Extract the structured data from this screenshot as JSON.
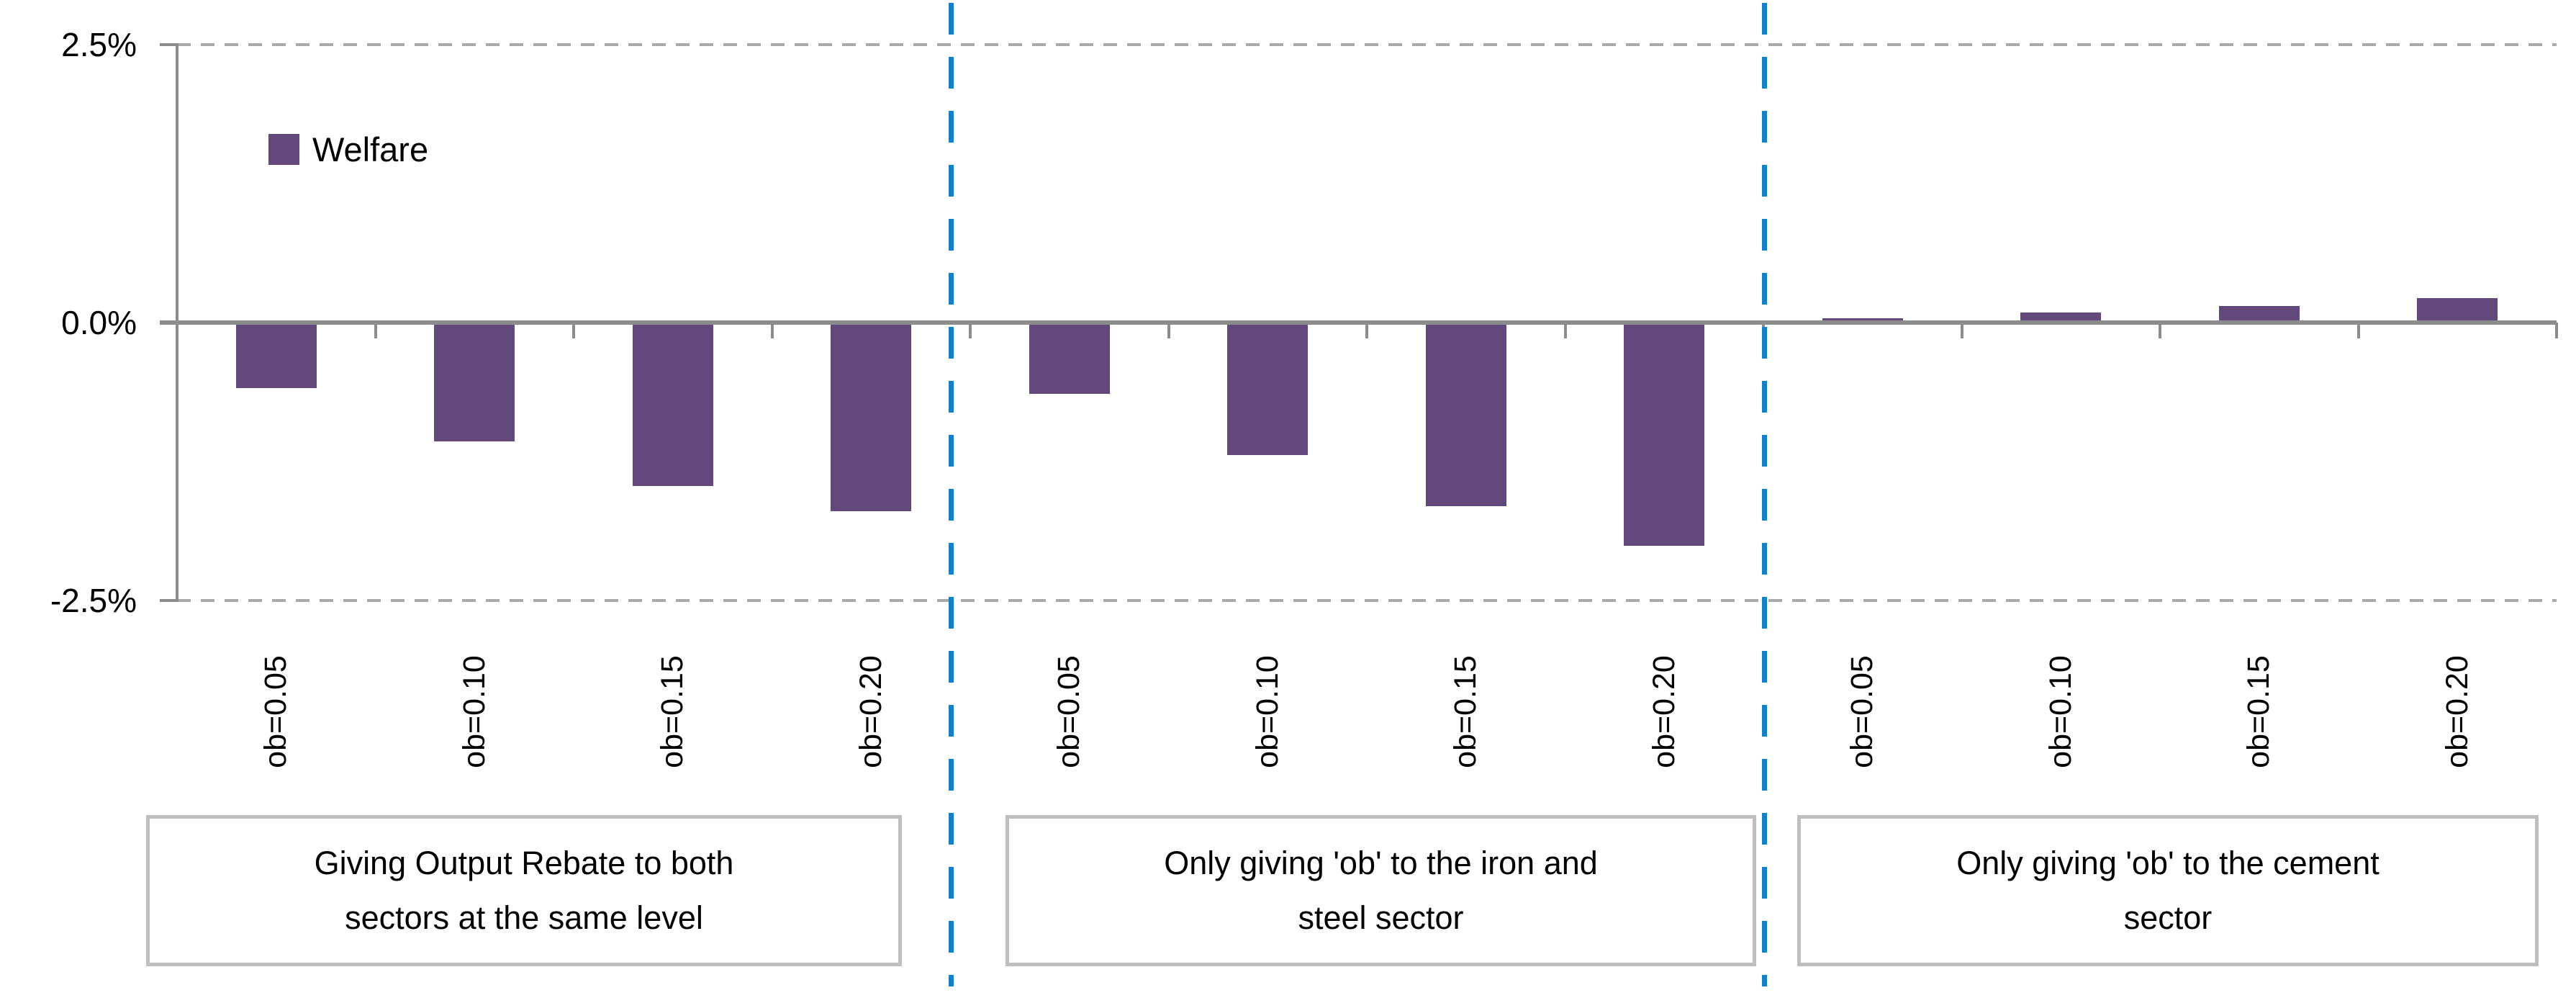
{
  "chart_data": {
    "type": "bar",
    "title": "",
    "series_name": "Welfare",
    "legend": [
      "Welfare"
    ],
    "legend_position": "inside-top-left",
    "y_axis": {
      "unit": "%",
      "min": -2.5,
      "max": 2.5,
      "tick_labels": [
        "2.5%",
        "0.0%",
        "-2.5%"
      ],
      "gridlines": "dashed at +2.5% and -2.5%"
    },
    "grid": "on (dashed, top and bottom only)",
    "groups": [
      {
        "label": "Giving Output Rebate to both sectors at the same level",
        "label_lines": [
          "Giving Output Rebate to both",
          "sectors at the same level"
        ],
        "categories": [
          "ob=0.05",
          "ob=0.10",
          "ob=0.15",
          "ob=0.20"
        ],
        "values": [
          -0.59,
          -1.07,
          -1.47,
          -1.7
        ]
      },
      {
        "label": "Only giving 'ob' to the iron and steel sector",
        "label_lines": [
          "Only giving 'ob'  to the iron and",
          "steel sector"
        ],
        "categories": [
          "ob=0.05",
          "ob=0.10",
          "ob=0.15",
          "ob=0.20"
        ],
        "values": [
          -0.64,
          -1.19,
          -1.65,
          -2.01
        ]
      },
      {
        "label": "Only giving 'ob' to the cement sector",
        "label_lines": [
          "Only giving 'ob'  to the cement",
          "sector"
        ],
        "categories": [
          "ob=0.05",
          "ob=0.10",
          "ob=0.15",
          "ob=0.20"
        ],
        "values": [
          0.04,
          0.09,
          0.15,
          0.22
        ]
      }
    ]
  },
  "colors": {
    "bar": "#63497B",
    "separator_line": "#1780C4",
    "axis": "#8C8C8C",
    "gridline": "#A9A9A9",
    "box_border": "#BFBFBF",
    "text": "#000000",
    "background": "#FFFFFF"
  }
}
